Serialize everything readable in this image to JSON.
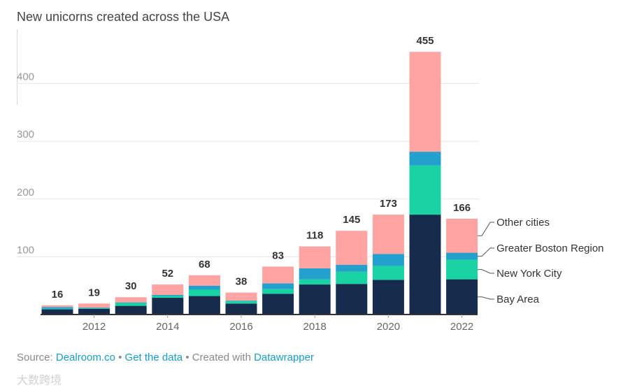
{
  "chart_data": {
    "type": "bar",
    "stacked": true,
    "title": "New unicorns created across the USA",
    "x": [
      2011,
      2012,
      2013,
      2014,
      2015,
      2016,
      2017,
      2018,
      2019,
      2020,
      2021,
      2022
    ],
    "x_tick_labels": [
      "2012",
      "2014",
      "2016",
      "2018",
      "2020",
      "2022"
    ],
    "x_ticks": [
      2012,
      2014,
      2016,
      2018,
      2020,
      2022
    ],
    "y_ticks": [
      100,
      200,
      300,
      400
    ],
    "ylim": [
      0,
      455
    ],
    "totals": [
      16,
      19,
      30,
      52,
      68,
      38,
      83,
      118,
      145,
      173,
      455,
      166
    ],
    "series": [
      {
        "name": "Bay Area",
        "color": "#172b4d",
        "values": [
          9,
          10,
          15,
          29,
          32,
          19,
          36,
          52,
          53,
          60,
          173,
          61
        ]
      },
      {
        "name": "New York City",
        "color": "#19d3a2",
        "values": [
          1,
          1,
          5,
          3,
          11,
          4,
          8,
          9,
          21,
          24,
          85,
          34
        ]
      },
      {
        "name": "Greater Boston Region",
        "color": "#24a0cc",
        "values": [
          3,
          1,
          1,
          2,
          7,
          1,
          10,
          19,
          12,
          21,
          24,
          12
        ]
      },
      {
        "name": "Other cities",
        "color": "#ffa3a3",
        "values": [
          3,
          7,
          9,
          18,
          18,
          14,
          29,
          38,
          59,
          68,
          173,
          59
        ]
      }
    ]
  },
  "footer": {
    "source_label": "Source:",
    "source_link": "Dealroom.co",
    "separator": "•",
    "data_link": "Get the data",
    "created_with": "Created with",
    "tool_link": "Datawrapper"
  },
  "watermark": "大数跨境"
}
